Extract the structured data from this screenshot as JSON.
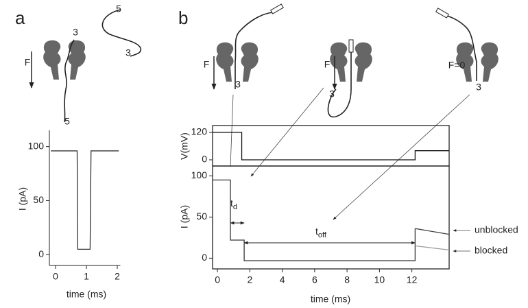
{
  "chart_data": [
    {
      "type": "line",
      "panel_label": "a",
      "xlabel": "time (ms)",
      "ylabel": "I (pA)",
      "xlim": [
        -0.2,
        2.1
      ],
      "ylim": [
        -10,
        115
      ],
      "xticks": [
        0,
        1,
        2
      ],
      "yticks": [
        0,
        50,
        100
      ],
      "series": [
        {
          "color": "#333333",
          "x": [
            -0.15,
            0.7,
            0.72,
            1.12,
            1.15,
            2.05
          ],
          "values": [
            96,
            96,
            5,
            5,
            96,
            96
          ]
        }
      ],
      "annotations": [
        "F",
        "3",
        "5",
        "5",
        "3"
      ]
    },
    {
      "type": "line",
      "panel_label": "b",
      "ylabel": "V(mV)",
      "xlim": [
        -0.3,
        14.3
      ],
      "ylim": [
        -27,
        150
      ],
      "yticks": [
        0,
        120
      ],
      "series": [
        {
          "color": "#111111",
          "x": [
            -0.3,
            1.5,
            1.5,
            12.2,
            12.2,
            14.3
          ],
          "values": [
            120,
            120,
            0,
            0,
            40,
            40
          ]
        }
      ],
      "annotations": [
        "F",
        "3",
        "F",
        "3",
        "F=0",
        "3"
      ]
    },
    {
      "type": "line",
      "xlabel": "time (ms)",
      "ylabel": "I (pA)",
      "xlim": [
        -0.3,
        14.3
      ],
      "ylim": [
        -13,
        112
      ],
      "xticks": [
        0,
        2,
        4,
        6,
        8,
        10,
        12
      ],
      "yticks": [
        0,
        50,
        100
      ],
      "series": [
        {
          "color": "#333333",
          "x": [
            -0.3,
            0.8,
            0.8,
            1.65,
            1.65,
            12.2,
            12.2
          ],
          "values": [
            95,
            95,
            22,
            22,
            -3,
            -3,
            36
          ]
        },
        {
          "name": "unblocked",
          "color": "#444444",
          "x": [
            12.2,
            14.3
          ],
          "values": [
            36,
            29
          ]
        },
        {
          "name": "blocked",
          "color": "#999999",
          "x": [
            12.2,
            14.3
          ],
          "values": [
            15,
            10
          ]
        }
      ],
      "annotations": [
        {
          "text": "t",
          "subscript": "d"
        },
        {
          "text": "t",
          "subscript": "off"
        }
      ]
    }
  ]
}
